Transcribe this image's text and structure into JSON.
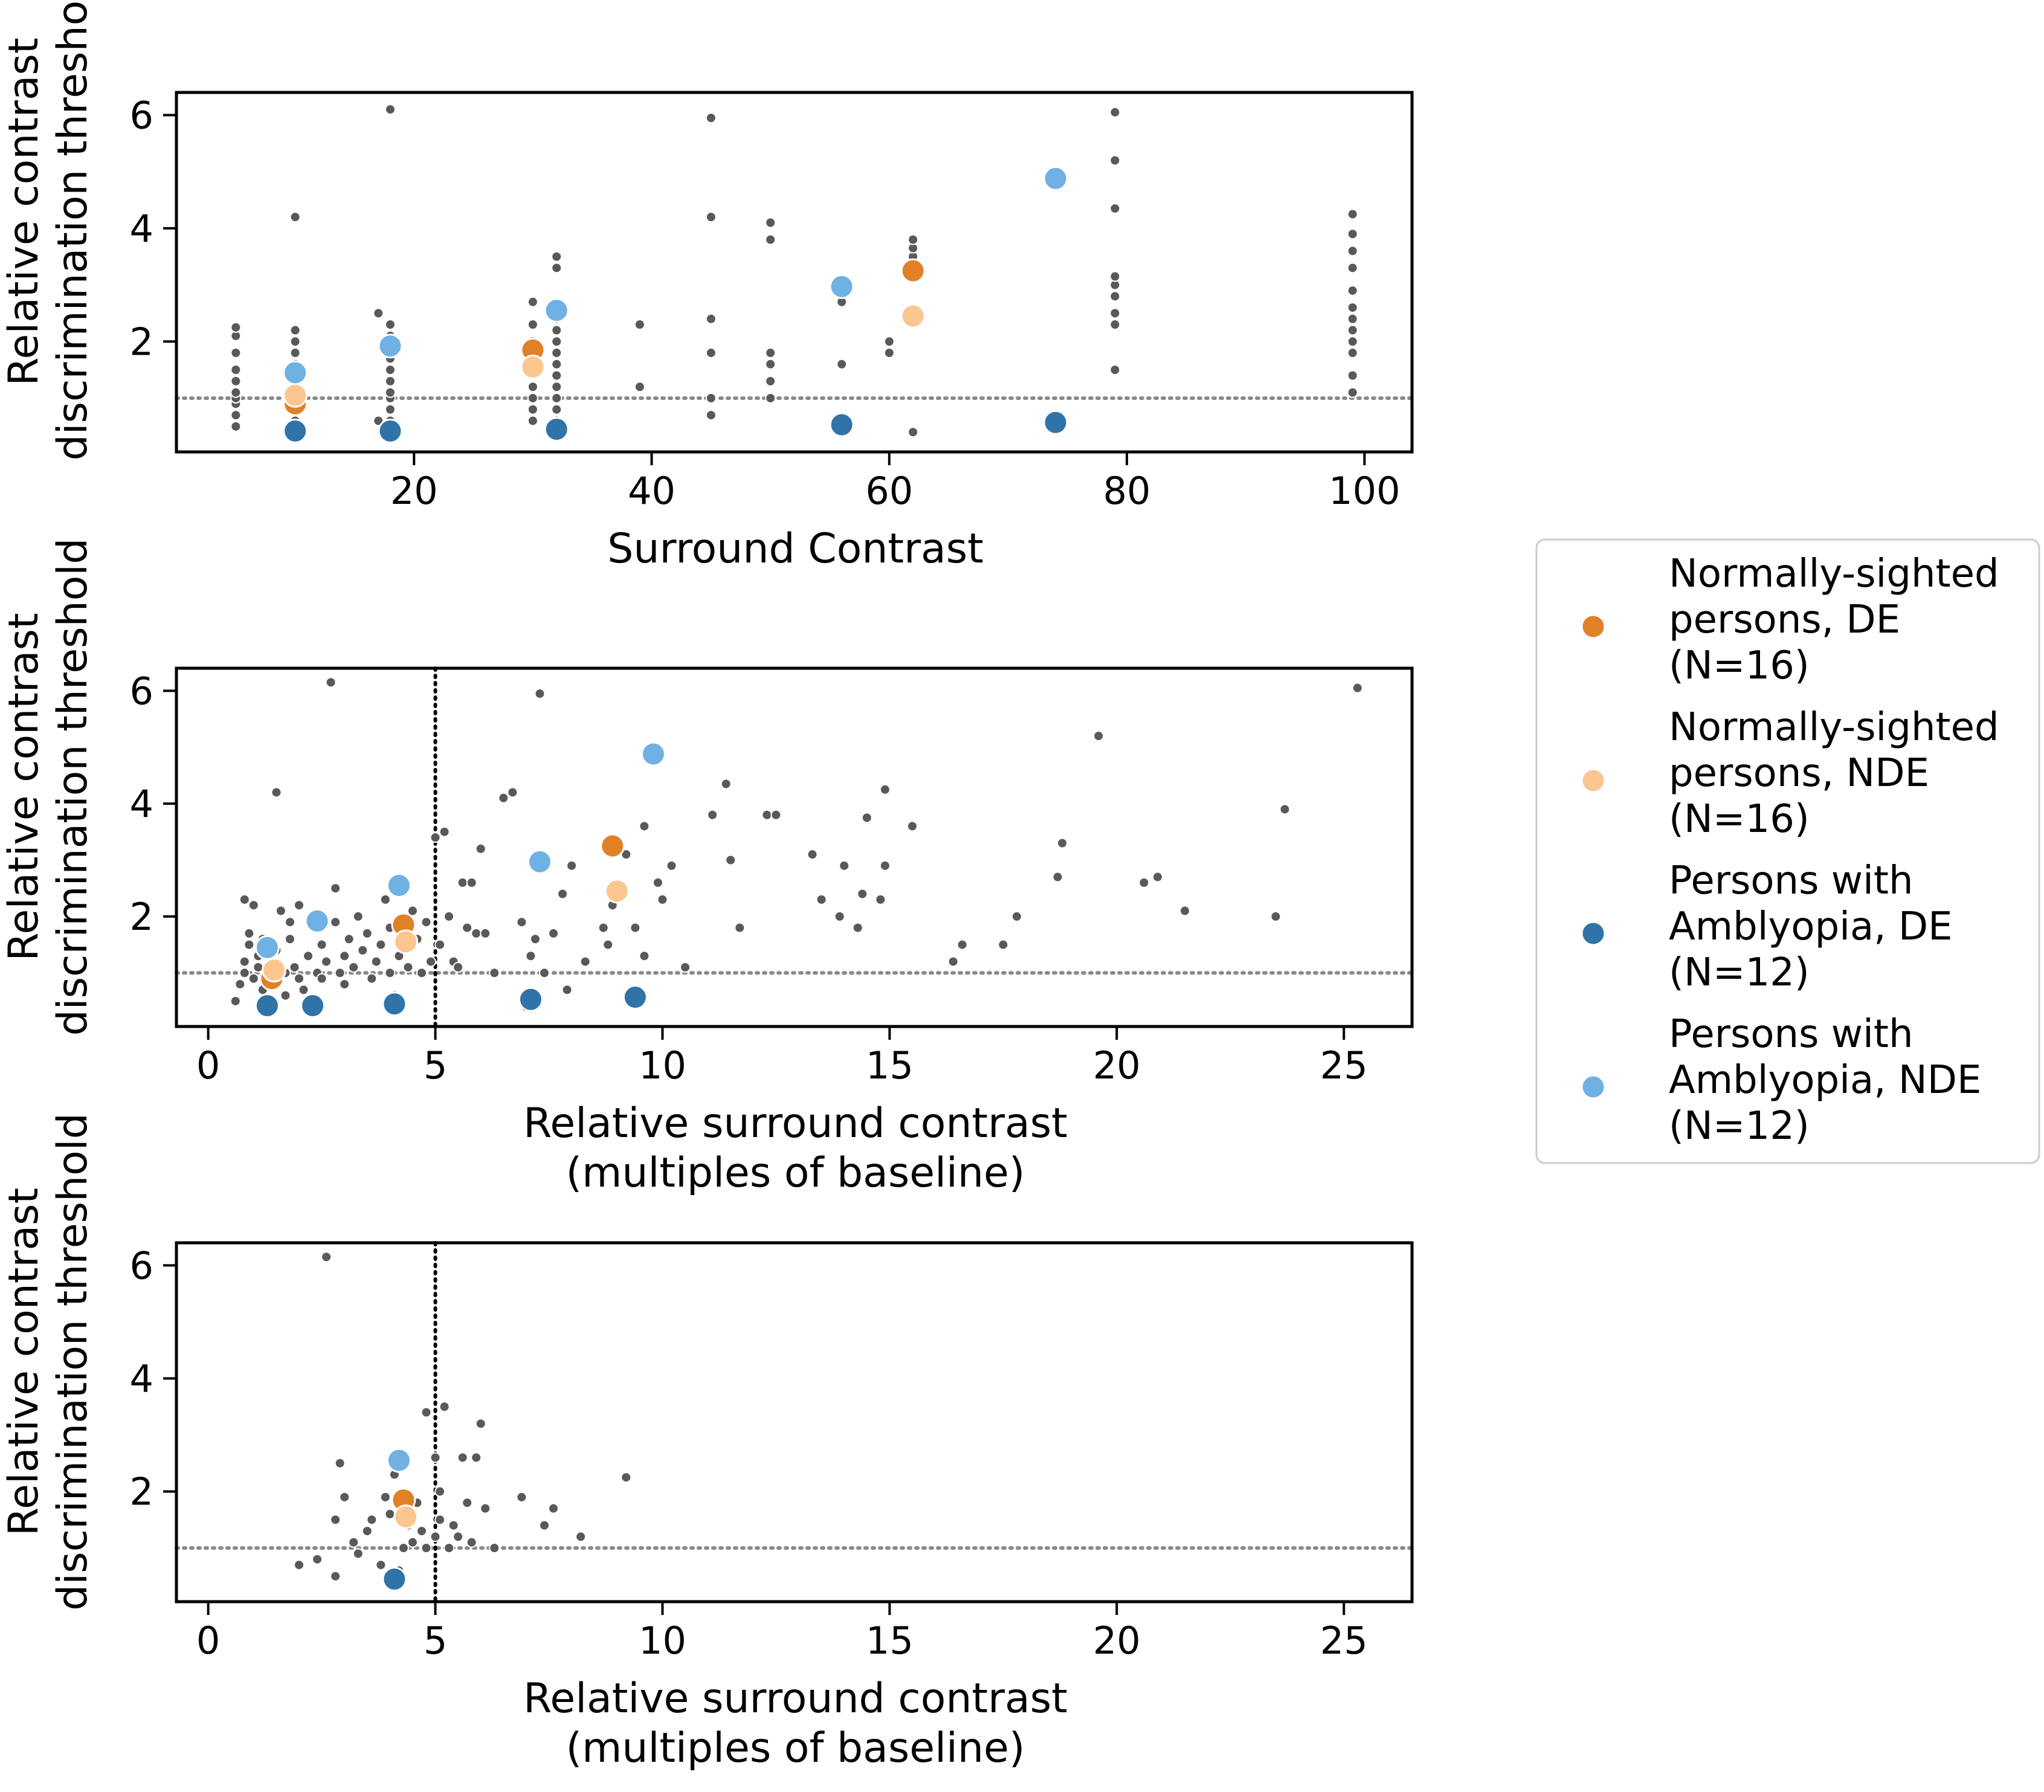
{
  "colors": {
    "individual": "#595959",
    "ref_line": "#8a8a8a",
    "vline": "#000000",
    "legend_border": "#cccccc"
  },
  "legend": {
    "entries": [
      {
        "lines": [
          "Normally-sighted",
          "persons, DE",
          "(N=16)"
        ],
        "color": "#e08127"
      },
      {
        "lines": [
          "Normally-sighted",
          "persons, NDE",
          "(N=16)"
        ],
        "color": "#fcc690"
      },
      {
        "lines": [
          "Persons with",
          "Amblyopia, DE",
          "(N=12)"
        ],
        "color": "#2f73a9"
      },
      {
        "lines": [
          "Persons with",
          "Amblyopia, NDE",
          "(N=12)"
        ],
        "color": "#6fb1e3"
      }
    ]
  },
  "chart_data": [
    {
      "type": "scatter",
      "xlabel": [
        "Surround Contrast"
      ],
      "ylabel": [
        "Relative contrast",
        "discrimination threshold"
      ],
      "xlim": [
        0,
        104
      ],
      "ylim": [
        0.05,
        6.4
      ],
      "xticks": [
        20,
        40,
        60,
        80,
        100
      ],
      "xtick_labels": [
        "20",
        "40",
        "60",
        "80",
        "100"
      ],
      "yticks": [
        2,
        4,
        6
      ],
      "ytick_labels": [
        "2",
        "4",
        "6"
      ],
      "reference_line_y": 1,
      "individual_points": [
        [
          5,
          0.5
        ],
        [
          5,
          0.7
        ],
        [
          5,
          0.9
        ],
        [
          5,
          1.0
        ],
        [
          5,
          1.1
        ],
        [
          5,
          1.3
        ],
        [
          5,
          1.5
        ],
        [
          5,
          1.8
        ],
        [
          5,
          2.1
        ],
        [
          5,
          2.25
        ],
        [
          10,
          0.6
        ],
        [
          10,
          0.8
        ],
        [
          10,
          1.2
        ],
        [
          10,
          1.4
        ],
        [
          10,
          1.6
        ],
        [
          10,
          1.8
        ],
        [
          10,
          2.0
        ],
        [
          10,
          2.2
        ],
        [
          10,
          4.2
        ],
        [
          18,
          0.5
        ],
        [
          18,
          0.6
        ],
        [
          18,
          0.8
        ],
        [
          18,
          1.0
        ],
        [
          18,
          1.1
        ],
        [
          18,
          1.3
        ],
        [
          18,
          1.5
        ],
        [
          18,
          1.7
        ],
        [
          18,
          1.9
        ],
        [
          18,
          2.1
        ],
        [
          18,
          2.3
        ],
        [
          18,
          6.1
        ],
        [
          17,
          2.5
        ],
        [
          17,
          0.6
        ],
        [
          30,
          0.6
        ],
        [
          30,
          0.8
        ],
        [
          30,
          1.0
        ],
        [
          30,
          1.2
        ],
        [
          30,
          1.6
        ],
        [
          30,
          1.8
        ],
        [
          30,
          2.0
        ],
        [
          30,
          2.3
        ],
        [
          30,
          2.7
        ],
        [
          32,
          0.6
        ],
        [
          32,
          0.8
        ],
        [
          32,
          1.0
        ],
        [
          32,
          1.2
        ],
        [
          32,
          1.4
        ],
        [
          32,
          1.6
        ],
        [
          32,
          1.8
        ],
        [
          32,
          2.0
        ],
        [
          32,
          2.2
        ],
        [
          32,
          2.4
        ],
        [
          32,
          3.3
        ],
        [
          32,
          3.5
        ],
        [
          39,
          1.2
        ],
        [
          39,
          2.3
        ],
        [
          45,
          0.7
        ],
        [
          45,
          1.0
        ],
        [
          45,
          1.8
        ],
        [
          45,
          2.4
        ],
        [
          45,
          4.2
        ],
        [
          45,
          5.95
        ],
        [
          50,
          1.0
        ],
        [
          50,
          1.3
        ],
        [
          50,
          1.6
        ],
        [
          50,
          1.8
        ],
        [
          50,
          3.8
        ],
        [
          50,
          4.1
        ],
        [
          56,
          1.6
        ],
        [
          56,
          2.7
        ],
        [
          60,
          1.8
        ],
        [
          60,
          2.0
        ],
        [
          62,
          0.4
        ],
        [
          62,
          3.5
        ],
        [
          62,
          3.65
        ],
        [
          62,
          3.8
        ],
        [
          79,
          1.5
        ],
        [
          79,
          2.3
        ],
        [
          79,
          2.5
        ],
        [
          79,
          2.8
        ],
        [
          79,
          3.0
        ],
        [
          79,
          3.15
        ],
        [
          79,
          4.35
        ],
        [
          79,
          5.2
        ],
        [
          79,
          6.05
        ],
        [
          99,
          1.1
        ],
        [
          99,
          1.4
        ],
        [
          99,
          1.8
        ],
        [
          99,
          2.0
        ],
        [
          99,
          2.2
        ],
        [
          99,
          2.4
        ],
        [
          99,
          2.6
        ],
        [
          99,
          2.9
        ],
        [
          99,
          3.3
        ],
        [
          99,
          3.6
        ],
        [
          99,
          3.9
        ],
        [
          99,
          4.25
        ]
      ],
      "group_means": [
        {
          "group": 0,
          "points": [
            [
              10,
              0.9
            ],
            [
              30,
              1.85
            ],
            [
              62,
              3.25
            ]
          ]
        },
        {
          "group": 1,
          "points": [
            [
              10,
              1.05
            ],
            [
              30,
              1.55
            ],
            [
              62,
              2.45
            ]
          ]
        },
        {
          "group": 2,
          "points": [
            [
              10,
              0.42
            ],
            [
              18,
              0.42
            ],
            [
              32,
              0.45
            ],
            [
              56,
              0.53
            ],
            [
              74,
              0.57
            ]
          ]
        },
        {
          "group": 3,
          "points": [
            [
              10,
              1.45
            ],
            [
              18,
              1.92
            ],
            [
              32,
              2.55
            ],
            [
              56,
              2.97
            ],
            [
              74,
              4.88
            ]
          ]
        }
      ]
    },
    {
      "type": "scatter",
      "xlabel": [
        "Relative surround contrast",
        "(multiples of baseline)"
      ],
      "ylabel": [
        "Relative contrast",
        "discrimination threshold"
      ],
      "xlim": [
        -0.7,
        26.5
      ],
      "ylim": [
        0.05,
        6.4
      ],
      "xticks": [
        0,
        5,
        10,
        15,
        20,
        25
      ],
      "xtick_labels": [
        "0",
        "5",
        "10",
        "15",
        "20",
        "25"
      ],
      "yticks": [
        2,
        4,
        6
      ],
      "ytick_labels": [
        "2",
        "4",
        "6"
      ],
      "reference_line_y": 1,
      "vertical_line_x": 5,
      "individual_points": [
        [
          0.6,
          0.5
        ],
        [
          0.7,
          0.8
        ],
        [
          0.8,
          1.0
        ],
        [
          0.8,
          1.2
        ],
        [
          0.9,
          1.5
        ],
        [
          0.9,
          1.7
        ],
        [
          0.8,
          2.3
        ],
        [
          1.0,
          2.2
        ],
        [
          1.0,
          0.9
        ],
        [
          1.1,
          1.1
        ],
        [
          1.1,
          1.3
        ],
        [
          1.2,
          0.7
        ],
        [
          1.2,
          1.6
        ],
        [
          1.3,
          0.9
        ],
        [
          1.4,
          1.2
        ],
        [
          1.5,
          0.8
        ],
        [
          1.5,
          1.4
        ],
        [
          1.5,
          4.2
        ],
        [
          1.6,
          2.1
        ],
        [
          1.7,
          1.0
        ],
        [
          1.7,
          0.6
        ],
        [
          1.8,
          1.6
        ],
        [
          1.8,
          1.9
        ],
        [
          1.9,
          1.1
        ],
        [
          2.0,
          2.2
        ],
        [
          2.0,
          0.9
        ],
        [
          2.1,
          0.7
        ],
        [
          2.2,
          1.3
        ],
        [
          2.3,
          0.5
        ],
        [
          2.4,
          1.0
        ],
        [
          2.5,
          1.5
        ],
        [
          2.5,
          0.9
        ],
        [
          2.6,
          1.2
        ],
        [
          2.7,
          6.15
        ],
        [
          2.8,
          2.5
        ],
        [
          2.8,
          1.9
        ],
        [
          2.9,
          1.0
        ],
        [
          3.0,
          1.3
        ],
        [
          3.0,
          0.8
        ],
        [
          3.1,
          1.6
        ],
        [
          3.2,
          1.1
        ],
        [
          3.3,
          2.0
        ],
        [
          3.4,
          1.4
        ],
        [
          3.5,
          1.7
        ],
        [
          3.6,
          0.9
        ],
        [
          3.7,
          1.2
        ],
        [
          3.8,
          1.5
        ],
        [
          3.9,
          2.3
        ],
        [
          4.0,
          1.0
        ],
        [
          4.0,
          1.8
        ],
        [
          4.1,
          0.6
        ],
        [
          4.2,
          1.3
        ],
        [
          4.4,
          1.1
        ],
        [
          4.5,
          2.1
        ],
        [
          4.6,
          1.6
        ],
        [
          4.7,
          1.0
        ],
        [
          4.8,
          1.9
        ],
        [
          4.9,
          1.2
        ],
        [
          5.0,
          3.4
        ],
        [
          5.1,
          1.5
        ],
        [
          5.2,
          3.5
        ],
        [
          5.3,
          2.0
        ],
        [
          5.4,
          1.2
        ],
        [
          5.5,
          1.1
        ],
        [
          5.6,
          2.6
        ],
        [
          5.7,
          1.8
        ],
        [
          5.8,
          2.6
        ],
        [
          5.9,
          1.7
        ],
        [
          6.0,
          3.2
        ],
        [
          6.1,
          1.7
        ],
        [
          6.3,
          1.0
        ],
        [
          6.5,
          4.1
        ],
        [
          6.7,
          4.2
        ],
        [
          6.9,
          1.9
        ],
        [
          7.0,
          0.4
        ],
        [
          7.1,
          1.3
        ],
        [
          7.2,
          1.6
        ],
        [
          7.3,
          5.95
        ],
        [
          7.4,
          1.0
        ],
        [
          7.6,
          1.7
        ],
        [
          7.8,
          2.4
        ],
        [
          7.9,
          0.7
        ],
        [
          8.0,
          2.9
        ],
        [
          8.3,
          1.2
        ],
        [
          8.7,
          1.8
        ],
        [
          8.8,
          1.5
        ],
        [
          8.9,
          2.2
        ],
        [
          9.2,
          3.1
        ],
        [
          9.4,
          1.8
        ],
        [
          9.6,
          3.6
        ],
        [
          9.6,
          1.3
        ],
        [
          9.9,
          2.6
        ],
        [
          10.0,
          2.3
        ],
        [
          10.2,
          2.9
        ],
        [
          10.5,
          1.1
        ],
        [
          11.1,
          3.8
        ],
        [
          11.4,
          4.35
        ],
        [
          11.5,
          3.0
        ],
        [
          11.7,
          1.8
        ],
        [
          12.3,
          3.8
        ],
        [
          12.5,
          3.8
        ],
        [
          13.3,
          3.1
        ],
        [
          13.5,
          2.3
        ],
        [
          13.9,
          2.0
        ],
        [
          14.0,
          2.9
        ],
        [
          14.3,
          1.8
        ],
        [
          14.4,
          2.4
        ],
        [
          14.5,
          3.75
        ],
        [
          14.8,
          2.3
        ],
        [
          14.9,
          4.25
        ],
        [
          14.9,
          2.9
        ],
        [
          15.5,
          3.6
        ],
        [
          16.4,
          1.2
        ],
        [
          16.6,
          1.5
        ],
        [
          17.5,
          1.5
        ],
        [
          17.8,
          2.0
        ],
        [
          18.7,
          2.7
        ],
        [
          18.8,
          3.3
        ],
        [
          19.6,
          5.2
        ],
        [
          20.6,
          2.6
        ],
        [
          20.9,
          2.7
        ],
        [
          21.5,
          2.1
        ],
        [
          23.5,
          2.0
        ],
        [
          23.7,
          3.9
        ],
        [
          25.3,
          6.05
        ]
      ],
      "group_means": [
        {
          "group": 0,
          "points": [
            [
              1.4,
              0.9
            ],
            [
              4.3,
              1.85
            ],
            [
              8.9,
              3.25
            ]
          ]
        },
        {
          "group": 1,
          "points": [
            [
              1.45,
              1.05
            ],
            [
              4.35,
              1.55
            ],
            [
              9.0,
              2.45
            ]
          ]
        },
        {
          "group": 2,
          "points": [
            [
              1.3,
              0.42
            ],
            [
              2.3,
              0.42
            ],
            [
              4.1,
              0.45
            ],
            [
              7.1,
              0.53
            ],
            [
              9.4,
              0.57
            ]
          ]
        },
        {
          "group": 3,
          "points": [
            [
              1.3,
              1.45
            ],
            [
              2.4,
              1.92
            ],
            [
              4.2,
              2.55
            ],
            [
              7.3,
              2.97
            ],
            [
              9.8,
              4.88
            ]
          ]
        }
      ]
    },
    {
      "type": "scatter",
      "xlabel": [
        "Relative surround contrast",
        "(multiples of baseline)"
      ],
      "ylabel": [
        "Relative contrast",
        "discrimination threshold"
      ],
      "xlim": [
        -0.7,
        26.5
      ],
      "ylim": [
        0.05,
        6.4
      ],
      "xticks": [
        0,
        5,
        10,
        15,
        20,
        25
      ],
      "xtick_labels": [
        "0",
        "5",
        "10",
        "15",
        "20",
        "25"
      ],
      "yticks": [
        2,
        4,
        6
      ],
      "ytick_labels": [
        "2",
        "4",
        "6"
      ],
      "reference_line_y": 1,
      "vertical_line_x": 5,
      "individual_points": [
        [
          2.0,
          0.7
        ],
        [
          2.4,
          0.8
        ],
        [
          2.6,
          6.15
        ],
        [
          2.8,
          0.5
        ],
        [
          2.8,
          1.5
        ],
        [
          2.9,
          2.5
        ],
        [
          3.0,
          1.9
        ],
        [
          3.2,
          1.1
        ],
        [
          3.3,
          0.9
        ],
        [
          3.5,
          1.3
        ],
        [
          3.6,
          1.5
        ],
        [
          3.8,
          0.7
        ],
        [
          3.9,
          1.9
        ],
        [
          4.0,
          1.6
        ],
        [
          4.1,
          2.3
        ],
        [
          4.2,
          0.6
        ],
        [
          4.3,
          1.0
        ],
        [
          4.4,
          1.4
        ],
        [
          4.5,
          1.1
        ],
        [
          4.6,
          1.8
        ],
        [
          4.7,
          1.3
        ],
        [
          4.8,
          1.0
        ],
        [
          4.8,
          3.4
        ],
        [
          5.0,
          1.2
        ],
        [
          5.0,
          2.6
        ],
        [
          5.1,
          1.5
        ],
        [
          5.1,
          2.0
        ],
        [
          5.2,
          3.5
        ],
        [
          5.3,
          1.0
        ],
        [
          5.4,
          1.4
        ],
        [
          5.5,
          1.2
        ],
        [
          5.6,
          2.6
        ],
        [
          5.7,
          1.8
        ],
        [
          5.8,
          1.1
        ],
        [
          5.9,
          2.6
        ],
        [
          6.0,
          3.2
        ],
        [
          6.1,
          1.7
        ],
        [
          6.3,
          1.0
        ],
        [
          6.9,
          1.9
        ],
        [
          7.4,
          1.4
        ],
        [
          7.6,
          1.7
        ],
        [
          8.2,
          1.2
        ],
        [
          9.2,
          2.25
        ]
      ],
      "group_means": [
        {
          "group": 0,
          "points": [
            [
              4.3,
              1.85
            ]
          ]
        },
        {
          "group": 1,
          "points": [
            [
              4.35,
              1.55
            ]
          ]
        },
        {
          "group": 2,
          "points": [
            [
              4.1,
              0.45
            ]
          ]
        },
        {
          "group": 3,
          "points": [
            [
              4.2,
              2.55
            ]
          ]
        }
      ]
    }
  ]
}
